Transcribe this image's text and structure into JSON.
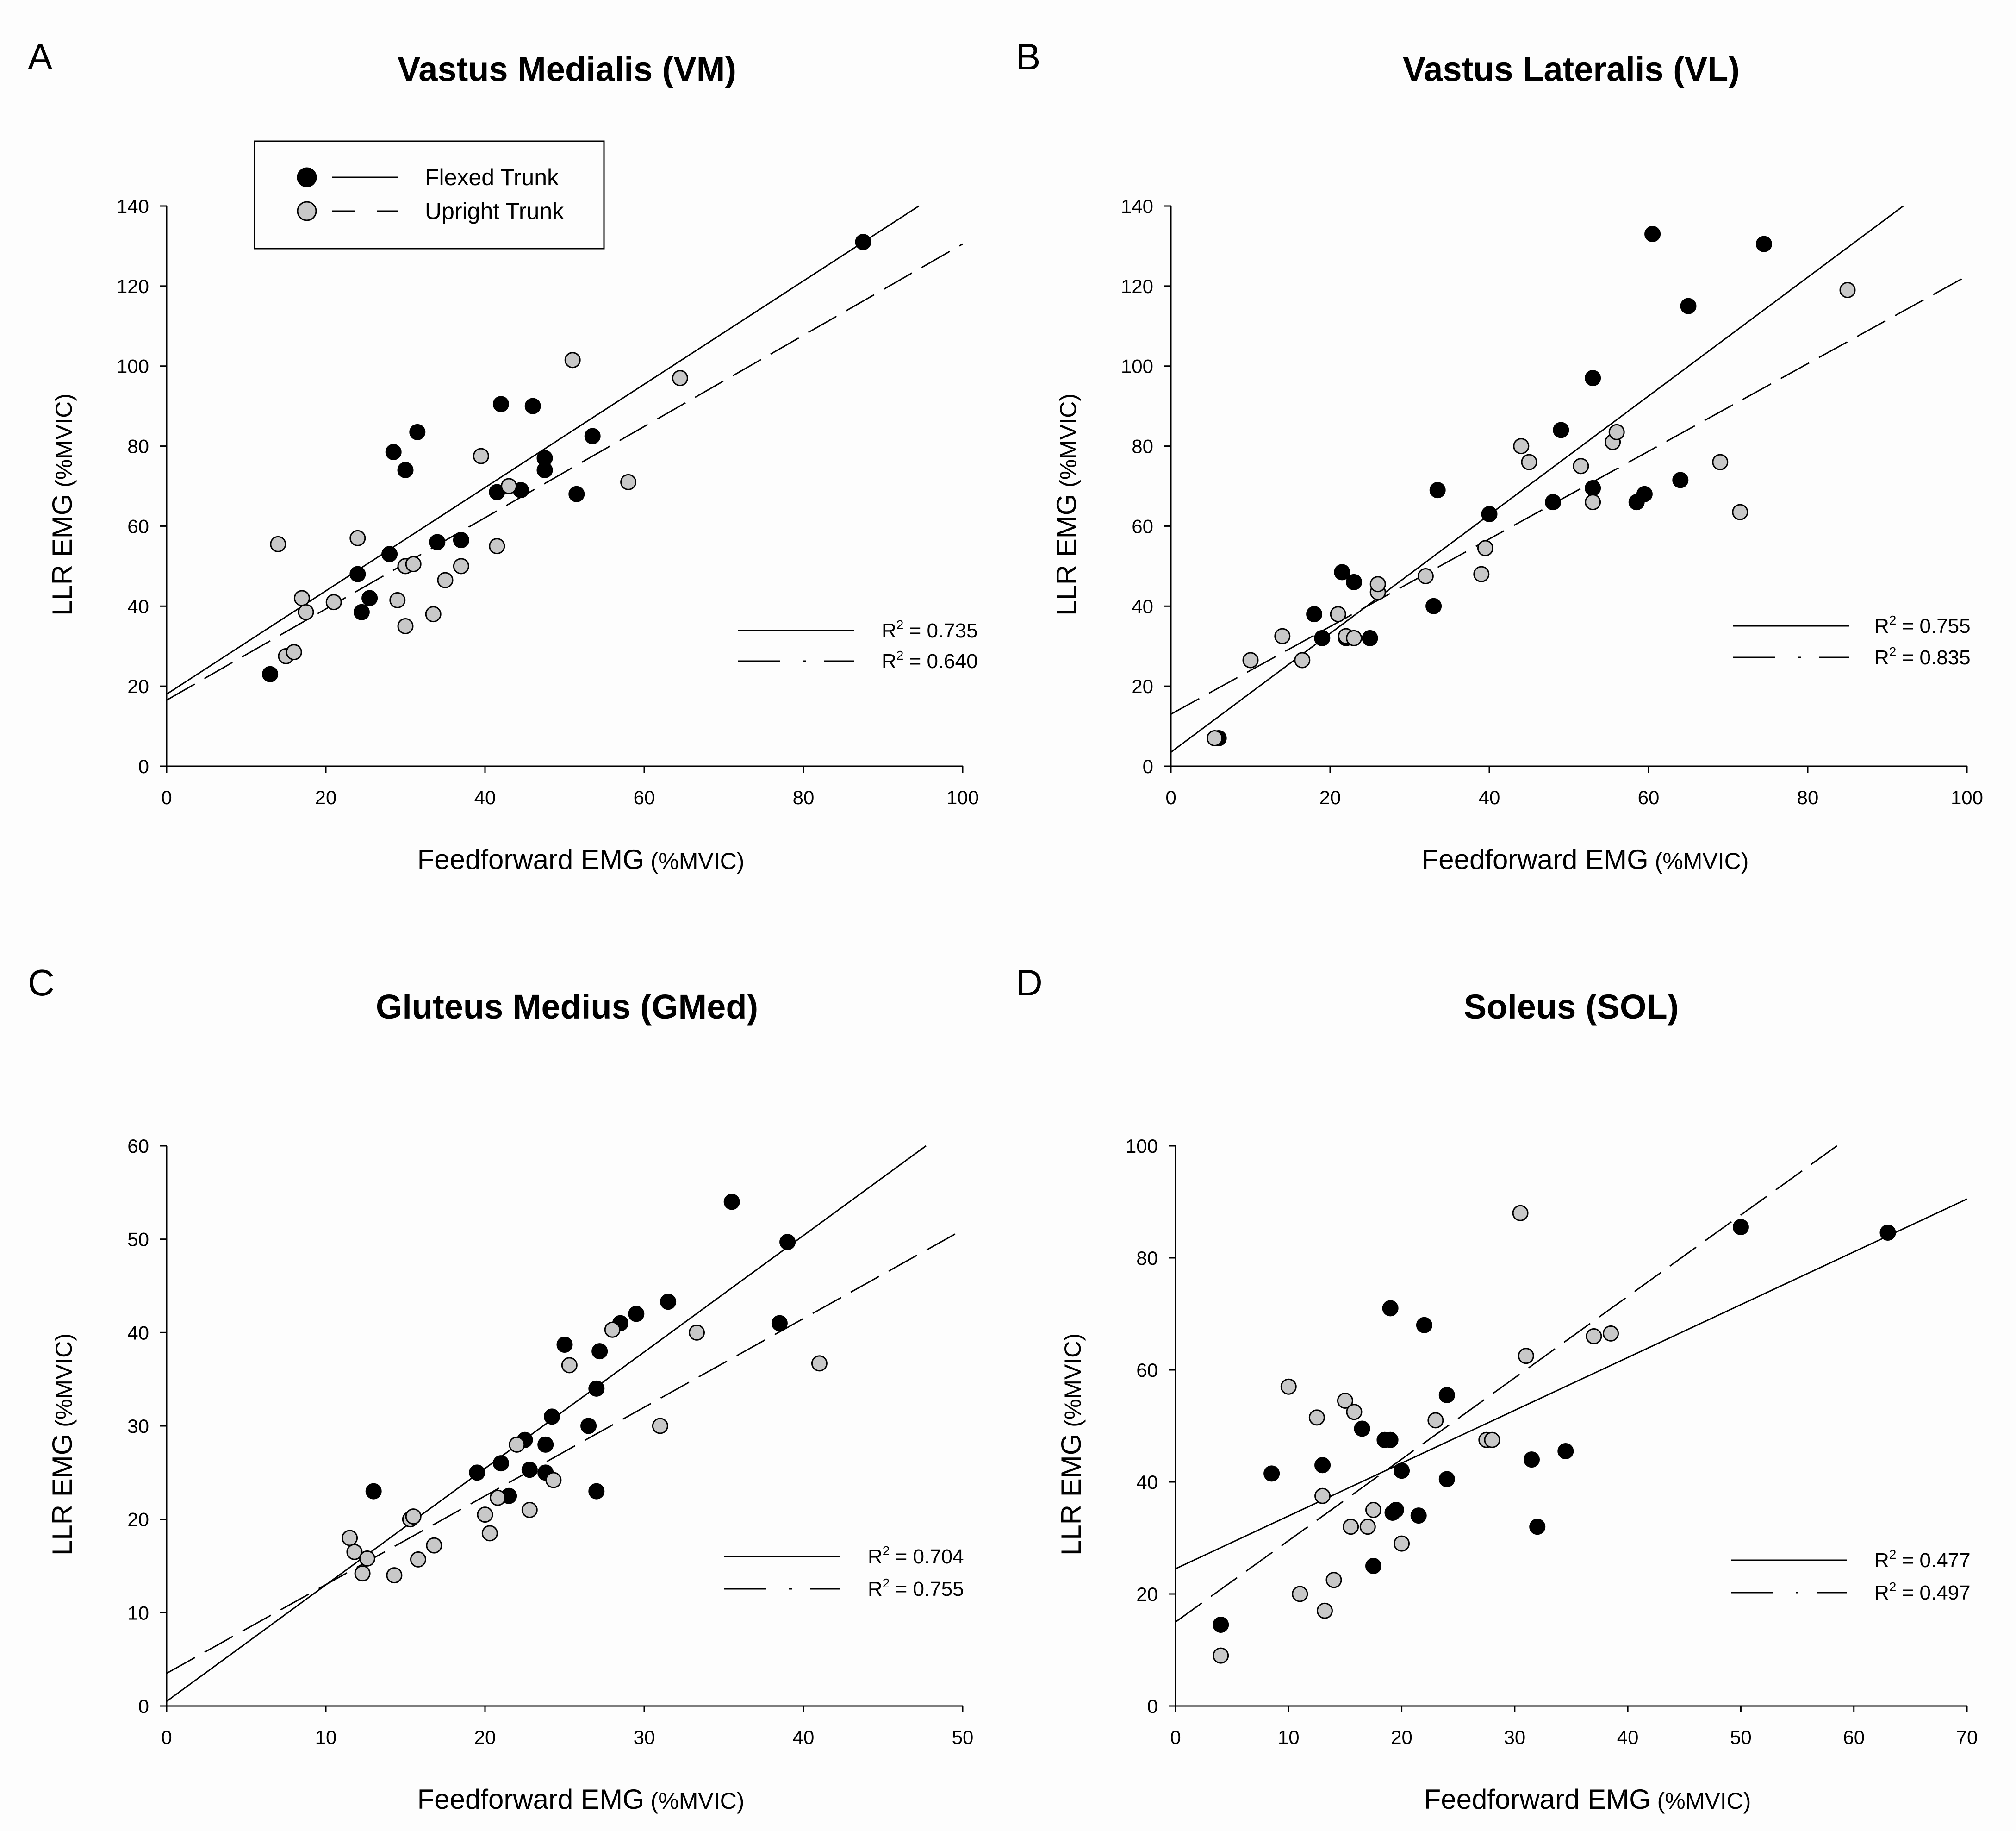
{
  "figure": {
    "legend": {
      "entries": [
        {
          "label": "Flexed Trunk",
          "marker_color": "#000000"
        },
        {
          "label": "Upright Trunk",
          "marker_color": "#c8c8c8"
        }
      ]
    }
  },
  "chart_data": [
    {
      "panel": "A",
      "type": "scatter",
      "title": "Vastus Medialis (VM)",
      "xlabel": "Feedforward EMG",
      "xunit": "(%MVIC)",
      "ylabel": "LLR EMG",
      "yunit": "(%MVIC)",
      "xlim": [
        0,
        100
      ],
      "ylim": [
        0,
        140
      ],
      "xticks": [
        0,
        20,
        40,
        60,
        80,
        100
      ],
      "yticks": [
        0,
        20,
        40,
        60,
        80,
        100,
        120,
        140
      ],
      "r2_prefix": "R",
      "r2_exp": "2",
      "r2_sep": " = ",
      "series": [
        {
          "name": "Flexed Trunk",
          "color": "#000000",
          "line_style": "solid",
          "r2": "0.735",
          "fit": {
            "x": [
              0,
              94.5
            ],
            "y": [
              18,
              140
            ]
          },
          "points": [
            [
              13,
              23
            ],
            [
              24,
              48
            ],
            [
              24.5,
              38.5
            ],
            [
              25.5,
              42
            ],
            [
              28,
              53
            ],
            [
              28.5,
              78.5
            ],
            [
              30,
              74
            ],
            [
              31.5,
              83.5
            ],
            [
              34,
              56
            ],
            [
              37,
              56.5
            ],
            [
              41.5,
              68.5
            ],
            [
              42,
              90.5
            ],
            [
              44.5,
              69
            ],
            [
              46,
              90
            ],
            [
              47.5,
              74
            ],
            [
              47.5,
              77
            ],
            [
              51.5,
              68
            ],
            [
              53.5,
              82.5
            ],
            [
              87.5,
              131
            ]
          ]
        },
        {
          "name": "Upright Trunk",
          "color": "#c8c8c8",
          "line_style": "dashed",
          "r2": "0.640",
          "fit": {
            "x": [
              0,
              100
            ],
            "y": [
              16.5,
              130.5
            ]
          },
          "points": [
            [
              14,
              55.5
            ],
            [
              15,
              27.5
            ],
            [
              16,
              28.5
            ],
            [
              17,
              42
            ],
            [
              17.5,
              38.5
            ],
            [
              21,
              41
            ],
            [
              24,
              57
            ],
            [
              29,
              41.5
            ],
            [
              30,
              35
            ],
            [
              30,
              50
            ],
            [
              31,
              50.5
            ],
            [
              33.5,
              38
            ],
            [
              35,
              46.5
            ],
            [
              37,
              50
            ],
            [
              39.5,
              77.5
            ],
            [
              41.5,
              55
            ],
            [
              43,
              70
            ],
            [
              51,
              101.5
            ],
            [
              58,
              71
            ],
            [
              64.5,
              97
            ]
          ]
        }
      ]
    },
    {
      "panel": "B",
      "type": "scatter",
      "title": "Vastus Lateralis (VL)",
      "xlabel": "Feedforward EMG",
      "xunit": "(%MVIC)",
      "ylabel": "LLR EMG",
      "yunit": "(%MVIC)",
      "xlim": [
        0,
        100
      ],
      "ylim": [
        0,
        140
      ],
      "xticks": [
        0,
        20,
        40,
        60,
        80,
        100
      ],
      "yticks": [
        0,
        20,
        40,
        60,
        80,
        100,
        120,
        140
      ],
      "r2_prefix": "R",
      "r2_exp": "2",
      "r2_sep": " = ",
      "series": [
        {
          "name": "Flexed Trunk",
          "color": "#000000",
          "line_style": "solid",
          "r2": "0.755",
          "fit": {
            "x": [
              0,
              92
            ],
            "y": [
              3.5,
              140
            ]
          },
          "points": [
            [
              6,
              7
            ],
            [
              18,
              38
            ],
            [
              19,
              32
            ],
            [
              21.5,
              48.5
            ],
            [
              22,
              32
            ],
            [
              23,
              46
            ],
            [
              25,
              32
            ],
            [
              33,
              40
            ],
            [
              33.5,
              69
            ],
            [
              40,
              63
            ],
            [
              48,
              66
            ],
            [
              49,
              84
            ],
            [
              53,
              97
            ],
            [
              53,
              69.5
            ],
            [
              58.5,
              66
            ],
            [
              59.5,
              68
            ],
            [
              60.5,
              133
            ],
            [
              64,
              71.5
            ],
            [
              65,
              115
            ],
            [
              74.5,
              130.5
            ]
          ]
        },
        {
          "name": "Upright Trunk",
          "color": "#c8c8c8",
          "line_style": "dashed",
          "r2": "0.835",
          "fit": {
            "x": [
              0,
              100
            ],
            "y": [
              13,
              122.5
            ]
          },
          "points": [
            [
              5.5,
              7
            ],
            [
              10,
              26.5
            ],
            [
              14,
              32.5
            ],
            [
              16.5,
              26.5
            ],
            [
              21,
              38
            ],
            [
              22,
              32.5
            ],
            [
              23,
              32
            ],
            [
              26,
              43.5
            ],
            [
              26,
              45.5
            ],
            [
              32,
              47.5
            ],
            [
              39,
              48
            ],
            [
              39.5,
              54.5
            ],
            [
              44,
              80
            ],
            [
              45,
              76
            ],
            [
              51.5,
              75
            ],
            [
              53,
              66
            ],
            [
              55.5,
              81
            ],
            [
              56,
              83.5
            ],
            [
              69,
              76
            ],
            [
              71.5,
              63.5
            ],
            [
              85,
              119
            ]
          ]
        }
      ]
    },
    {
      "panel": "C",
      "type": "scatter",
      "title": "Gluteus Medius (GMed)",
      "xlabel": "Feedforward EMG",
      "xunit": "(%MVIC)",
      "ylabel": "LLR EMG",
      "yunit": "(%MVIC)",
      "xlim": [
        0,
        50
      ],
      "ylim": [
        0,
        60
      ],
      "xticks": [
        0,
        10,
        20,
        30,
        40,
        50
      ],
      "yticks": [
        0,
        10,
        20,
        30,
        40,
        50,
        60
      ],
      "r2_prefix": "R",
      "r2_exp": "2",
      "r2_sep": " = ",
      "series": [
        {
          "name": "Flexed Trunk",
          "color": "#000000",
          "line_style": "solid",
          "r2": "0.704",
          "fit": {
            "x": [
              0,
              47.7
            ],
            "y": [
              0.5,
              60
            ]
          },
          "points": [
            [
              13,
              23
            ],
            [
              19.5,
              25
            ],
            [
              21,
              26
            ],
            [
              21.5,
              22.5
            ],
            [
              22.5,
              28.5
            ],
            [
              22.8,
              25.3
            ],
            [
              23.8,
              28
            ],
            [
              23.8,
              25
            ],
            [
              24.2,
              31
            ],
            [
              25,
              38.7
            ],
            [
              26.5,
              30
            ],
            [
              27,
              23
            ],
            [
              27,
              34
            ],
            [
              27.2,
              38
            ],
            [
              28.5,
              41
            ],
            [
              29.5,
              42
            ],
            [
              31.5,
              43.3
            ],
            [
              35.5,
              54
            ],
            [
              38.5,
              41
            ],
            [
              39,
              49.7
            ]
          ]
        },
        {
          "name": "Upright Trunk",
          "color": "#c8c8c8",
          "line_style": "dashed",
          "r2": "0.755",
          "fit": {
            "x": [
              0,
              50
            ],
            "y": [
              3.5,
              51
            ]
          },
          "points": [
            [
              11.5,
              18
            ],
            [
              11.8,
              16.5
            ],
            [
              12.3,
              14.2
            ],
            [
              12.6,
              15.8
            ],
            [
              14.3,
              14
            ],
            [
              15.3,
              20
            ],
            [
              15.5,
              20.3
            ],
            [
              15.8,
              15.7
            ],
            [
              16.8,
              17.2
            ],
            [
              20,
              20.5
            ],
            [
              20.3,
              18.5
            ],
            [
              20.8,
              22.3
            ],
            [
              22,
              28
            ],
            [
              22.8,
              21
            ],
            [
              24.3,
              24.2
            ],
            [
              25.3,
              36.5
            ],
            [
              28,
              40.3
            ],
            [
              31,
              30
            ],
            [
              33.3,
              40
            ],
            [
              41,
              36.7
            ]
          ]
        }
      ]
    },
    {
      "panel": "D",
      "type": "scatter",
      "title": "Soleus (SOL)",
      "xlabel": "Feedforward EMG",
      "xunit": "(%MVIC)",
      "ylabel": "LLR EMG",
      "yunit": "(%MVIC)",
      "xlim": [
        0,
        70
      ],
      "ylim": [
        0,
        100
      ],
      "xticks": [
        0,
        10,
        20,
        30,
        40,
        50,
        60,
        70
      ],
      "yticks": [
        0,
        20,
        40,
        60,
        80,
        100
      ],
      "r2_prefix": "R",
      "r2_exp": "2",
      "r2_sep": " = ",
      "series": [
        {
          "name": "Flexed Trunk",
          "color": "#000000",
          "line_style": "solid",
          "r2": "0.477",
          "fit": {
            "x": [
              0,
              70
            ],
            "y": [
              24.5,
              90.5
            ]
          },
          "points": [
            [
              4,
              14.5
            ],
            [
              8.5,
              41.5
            ],
            [
              13,
              43
            ],
            [
              16.5,
              49.5
            ],
            [
              17.5,
              25
            ],
            [
              18.5,
              47.5
            ],
            [
              19,
              47.5
            ],
            [
              19,
              71
            ],
            [
              19.2,
              34.5
            ],
            [
              19.5,
              35
            ],
            [
              20,
              42
            ],
            [
              21.5,
              34
            ],
            [
              22,
              68
            ],
            [
              24,
              55.5
            ],
            [
              24,
              40.5
            ],
            [
              31.5,
              44
            ],
            [
              32,
              32
            ],
            [
              34.5,
              45.5
            ],
            [
              50,
              85.5
            ],
            [
              63,
              84.5
            ]
          ]
        },
        {
          "name": "Upright Trunk",
          "color": "#c8c8c8",
          "line_style": "dashed",
          "r2": "0.497",
          "fit": {
            "x": [
              0,
              58.5
            ],
            "y": [
              15,
              100
            ]
          },
          "points": [
            [
              4,
              9
            ],
            [
              10,
              57
            ],
            [
              11,
              20
            ],
            [
              12.5,
              51.5
            ],
            [
              13,
              37.5
            ],
            [
              13.2,
              17
            ],
            [
              14,
              22.5
            ],
            [
              15,
              54.5
            ],
            [
              15.5,
              32
            ],
            [
              15.8,
              52.5
            ],
            [
              17,
              32
            ],
            [
              17.5,
              35
            ],
            [
              20,
              29
            ],
            [
              23,
              51
            ],
            [
              27.5,
              47.5
            ],
            [
              28,
              47.5
            ],
            [
              30.5,
              88
            ],
            [
              31,
              62.5
            ],
            [
              37,
              66
            ],
            [
              38.5,
              66.5
            ]
          ]
        }
      ]
    }
  ]
}
